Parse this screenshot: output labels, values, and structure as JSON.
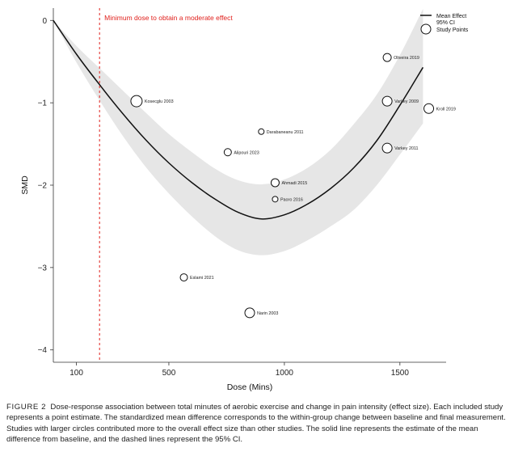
{
  "chart_data": {
    "type": "scatter",
    "title": "",
    "xlabel": "Dose (Mins)",
    "ylabel": "SMD",
    "xlim": [
      0,
      1700
    ],
    "ylim": [
      -4.15,
      0.15
    ],
    "x_ticks": [
      100,
      500,
      1000,
      1500
    ],
    "y_ticks": [
      0,
      -1,
      -2,
      -3,
      -4
    ],
    "x_tick_labels": [
      "100",
      "500",
      "1000",
      "1500"
    ],
    "y_tick_labels": [
      "0",
      "−1",
      "−2",
      "−3",
      "−4"
    ],
    "grid": false,
    "legend_position": "top-right",
    "legend": [
      "Mean Effect",
      "95% CI",
      "Study Points"
    ],
    "reference_line": {
      "x": 200,
      "label": "Minimum dose to obtain a moderate effect",
      "color": "#e0201c"
    },
    "mean_effect": {
      "x": [
        0,
        100,
        200,
        300,
        400,
        500,
        600,
        700,
        800,
        900,
        1000,
        1100,
        1200,
        1300,
        1400,
        1500,
        1600
      ],
      "y": [
        0.0,
        -0.41,
        -0.78,
        -1.13,
        -1.45,
        -1.73,
        -1.97,
        -2.17,
        -2.33,
        -2.41,
        -2.36,
        -2.23,
        -2.04,
        -1.79,
        -1.46,
        -1.03,
        -0.57
      ]
    },
    "ci_upper": [
      0.0,
      -0.31,
      -0.58,
      -0.85,
      -1.12,
      -1.38,
      -1.6,
      -1.8,
      -1.94,
      -1.99,
      -1.93,
      -1.79,
      -1.57,
      -1.26,
      -0.9,
      -0.42,
      0.14
    ],
    "ci_lower": [
      0.0,
      -0.51,
      -0.97,
      -1.4,
      -1.78,
      -2.1,
      -2.38,
      -2.62,
      -2.79,
      -2.85,
      -2.8,
      -2.67,
      -2.5,
      -2.3,
      -2.0,
      -1.63,
      -1.25
    ],
    "points": [
      {
        "label": "Kosecglu 2003",
        "x": 360,
        "y": -0.98,
        "size": 7
      },
      {
        "label": "Oliveira 2019",
        "x": 1445,
        "y": -0.45,
        "size": 5
      },
      {
        "label": "Varkey 2009",
        "x": 1445,
        "y": -0.98,
        "size": 6
      },
      {
        "label": "Kroll 2019",
        "x": 1625,
        "y": -1.07,
        "size": 6
      },
      {
        "label": "Darabaneanu 2011",
        "x": 900,
        "y": -1.35,
        "size": 3.5
      },
      {
        "label": "Alipouri 2023",
        "x": 755,
        "y": -1.6,
        "size": 4.5
      },
      {
        "label": "Varkey 2011",
        "x": 1445,
        "y": -1.55,
        "size": 6
      },
      {
        "label": "Ahmadi 2015",
        "x": 960,
        "y": -1.97,
        "size": 5
      },
      {
        "label": "Paoro 2016",
        "x": 960,
        "y": -2.17,
        "size": 3.5
      },
      {
        "label": "Eslami 2021",
        "x": 565,
        "y": -3.12,
        "size": 4.5
      },
      {
        "label": "Narin 2003",
        "x": 850,
        "y": -3.55,
        "size": 6
      }
    ]
  },
  "caption": {
    "figure_label": "FIGURE 2",
    "text": "Dose-response association between total minutes of aerobic exercise and change in pain intensity (effect size). Each included study represents a point estimate. The standardized mean difference corresponds to the within-group change between baseline and final measurement. Studies with larger circles contributed more to the overall effect size than other studies. The solid line represents the estimate of the mean difference from baseline, and the dashed lines represent the 95% CI."
  }
}
